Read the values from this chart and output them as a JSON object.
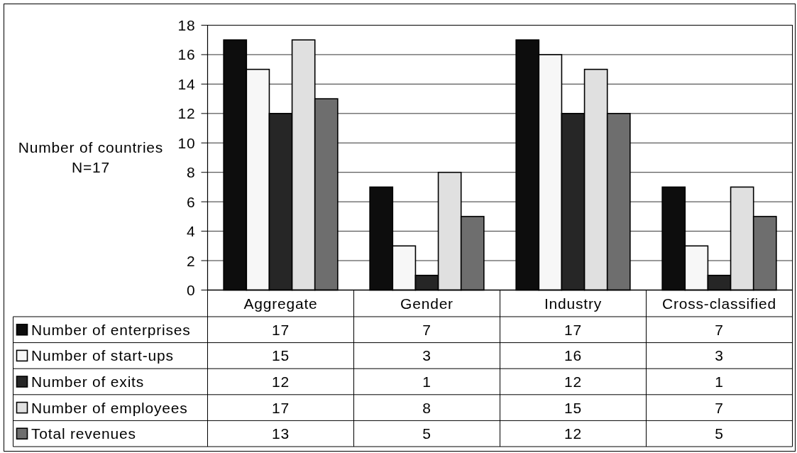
{
  "chart_data": {
    "type": "bar",
    "ylabel": "Number of countries\nN=17",
    "categories": [
      "Aggregate",
      "Gender",
      "Industry",
      "Cross-classified"
    ],
    "series": [
      {
        "name": "Number of enterprises",
        "color": "#0d0d0d",
        "values": [
          17,
          7,
          17,
          7
        ]
      },
      {
        "name": "Number of start-ups",
        "color": "#f7f7f7",
        "values": [
          15,
          3,
          16,
          3
        ]
      },
      {
        "name": "Number of exits",
        "color": "#262626",
        "values": [
          12,
          1,
          12,
          1
        ]
      },
      {
        "name": "Number of employees",
        "color": "#e0e0e0",
        "values": [
          17,
          8,
          15,
          7
        ]
      },
      {
        "name": "Total revenues",
        "color": "#6e6e6e",
        "values": [
          13,
          5,
          12,
          5
        ]
      }
    ],
    "ylim": [
      0,
      18
    ],
    "yticks": [
      0,
      2,
      4,
      6,
      8,
      10,
      12,
      14,
      16,
      18
    ],
    "grid": "y",
    "legend": "bottom",
    "data_labels": true
  }
}
